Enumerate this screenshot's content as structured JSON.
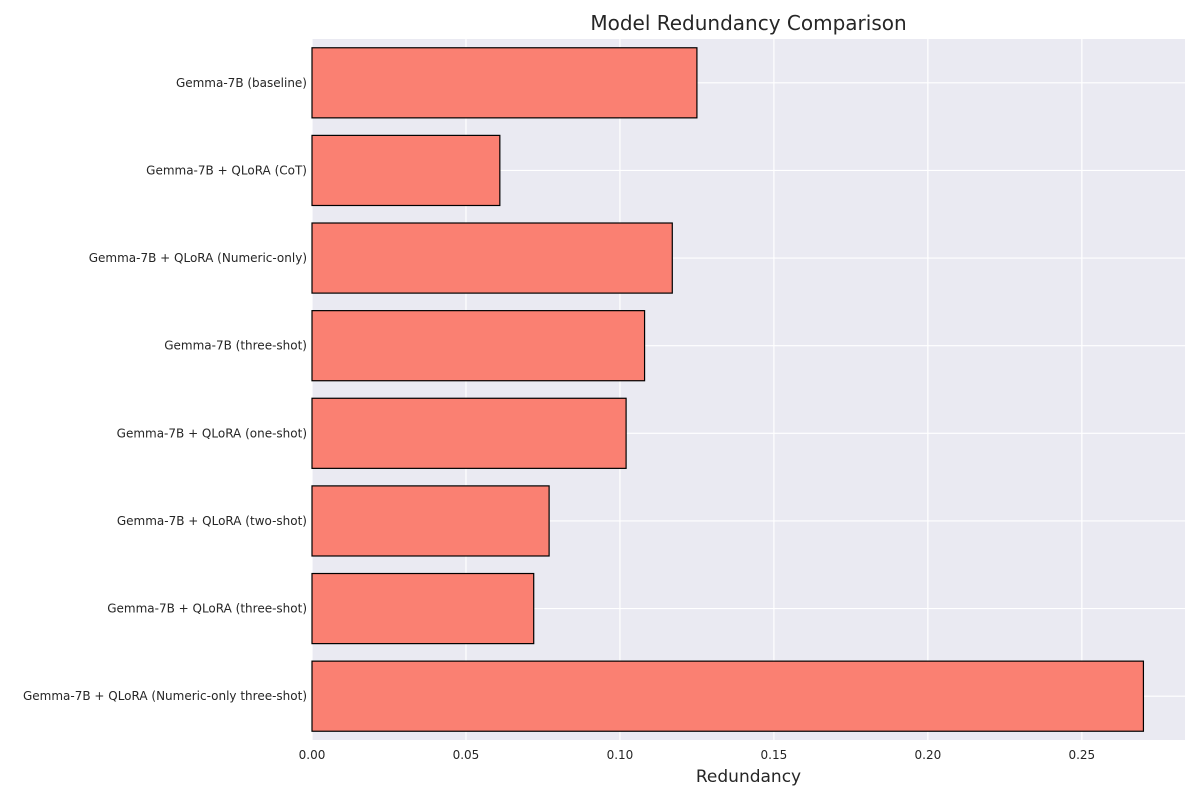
{
  "chart_data": {
    "type": "bar",
    "orientation": "horizontal",
    "title": "Model Redundancy Comparison",
    "xlabel": "Redundancy",
    "ylabel": "",
    "categories": [
      "Gemma-7B (baseline)",
      "Gemma-7B + QLoRA (CoT)",
      "Gemma-7B + QLoRA (Numeric-only)",
      "Gemma-7B (three-shot)",
      "Gemma-7B + QLoRA (one-shot)",
      "Gemma-7B + QLoRA (two-shot)",
      "Gemma-7B + QLoRA (three-shot)",
      "Gemma-7B + QLoRA (Numeric-only three-shot)"
    ],
    "values": [
      0.125,
      0.061,
      0.117,
      0.108,
      0.102,
      0.077,
      0.072,
      0.27
    ],
    "xlim": [
      0,
      0.2835
    ],
    "xticks": [
      "0.00",
      "0.05",
      "0.10",
      "0.15",
      "0.20",
      "0.25"
    ],
    "grid": true,
    "colors": {
      "bar_fill": "#FA8072",
      "bar_edge": "#000000",
      "plot_background": "#EAEAF2",
      "grid": "#FFFFFF",
      "text": "#262626"
    }
  }
}
